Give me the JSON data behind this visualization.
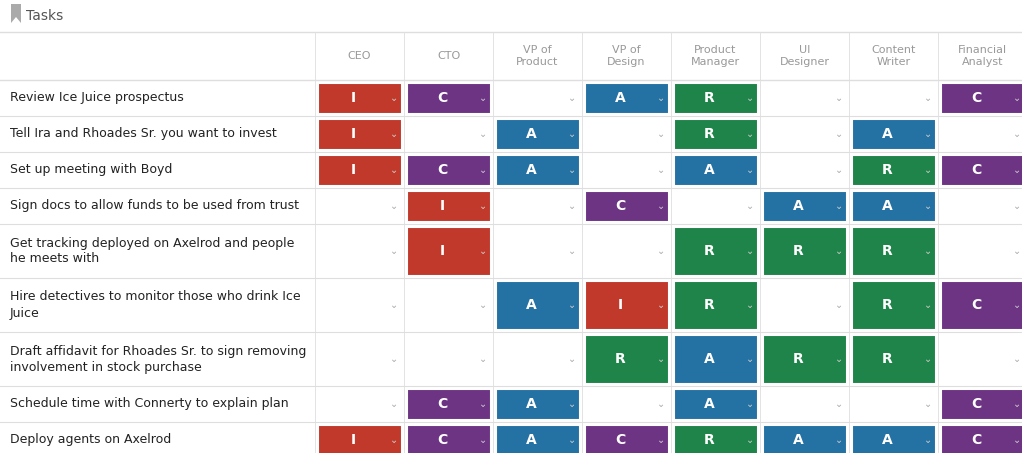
{
  "tasks": [
    "Review Ice Juice prospectus",
    "Tell Ira and Rhoades Sr. you want to invest",
    "Set up meeting with Boyd",
    "Sign docs to allow funds to be used from trust",
    "Get tracking deployed on Axelrod and people\nhe meets with",
    "Hire detectives to monitor those who drink Ice\nJuice",
    "Draft affidavit for Rhoades Sr. to sign removing\ninvolvement in stock purchase",
    "Schedule time with Connerty to explain plan",
    "Deploy agents on Axelrod"
  ],
  "columns": [
    "CEO",
    "CTO",
    "VP of\nProduct",
    "VP of\nDesign",
    "Product\nManager",
    "UI\nDesigner",
    "Content\nWriter",
    "Financial\nAnalyst"
  ],
  "raci_data": [
    [
      "I",
      "C",
      "",
      "A",
      "R",
      "",
      "",
      "C"
    ],
    [
      "I",
      "",
      "A",
      "",
      "R",
      "",
      "A",
      ""
    ],
    [
      "I",
      "C",
      "A",
      "",
      "A",
      "",
      "R",
      "C"
    ],
    [
      "",
      "I",
      "",
      "C",
      "",
      "A",
      "A",
      ""
    ],
    [
      "",
      "I",
      "",
      "",
      "R",
      "R",
      "R",
      ""
    ],
    [
      "",
      "",
      "A",
      "I",
      "R",
      "",
      "R",
      "C"
    ],
    [
      "",
      "",
      "",
      "R",
      "A",
      "R",
      "R",
      ""
    ],
    [
      "",
      "C",
      "A",
      "",
      "A",
      "",
      "",
      "C"
    ],
    [
      "I",
      "C",
      "A",
      "C",
      "R",
      "A",
      "A",
      "C"
    ]
  ],
  "colors": {
    "I": "#c0392b",
    "A": "#2471a3",
    "R": "#1e8449",
    "C": "#6c3483",
    "": "#ffffff"
  },
  "bg_color": "#ffffff",
  "header_text_color": "#999999",
  "task_text_color": "#222222",
  "cell_text_color": "#ffffff",
  "grid_color": "#dedede",
  "title_text_color": "#555555",
  "figsize": [
    10.22,
    4.53
  ],
  "dpi": 100
}
